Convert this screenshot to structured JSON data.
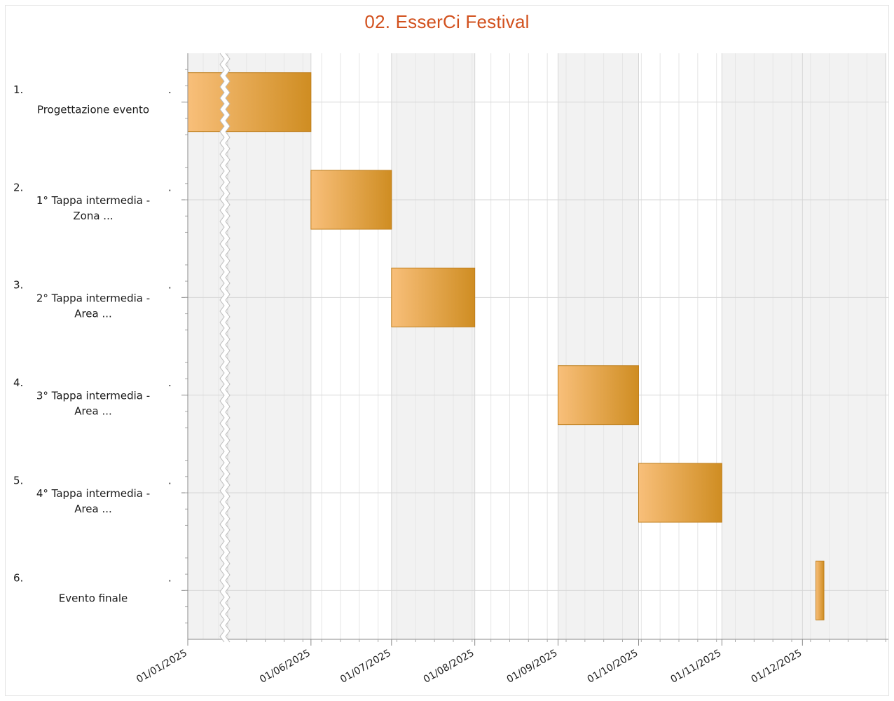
{
  "chart_data": {
    "type": "gantt",
    "title": "02. EsserCi Festival",
    "colors": {
      "bar_start": "#f8bf7a",
      "bar_end": "#cf8d22",
      "bar_border": "#c07f1c",
      "title": "#d2511e",
      "band": "#f2f2f2",
      "grid": "#d6d6d6"
    },
    "axis_break": {
      "from": "01/01/2025",
      "to": "01/05/2025"
    },
    "x_ticks": [
      "01/01/2025",
      "01/06/2025",
      "01/07/2025",
      "01/08/2025",
      "01/09/2025",
      "01/10/2025",
      "01/11/2025",
      "01/12/2025"
    ],
    "tasks": [
      {
        "number": "1.",
        "label": [
          "Progettazione evento"
        ],
        "start": "01/01/2025",
        "end": "31/05/2025"
      },
      {
        "number": "2.",
        "label": [
          "1° Tappa intermedia -",
          "Zona ..."
        ],
        "start": "01/06/2025",
        "end": "30/06/2025"
      },
      {
        "number": "3.",
        "label": [
          "2° Tappa intermedia -",
          "Area ..."
        ],
        "start": "01/07/2025",
        "end": "31/07/2025"
      },
      {
        "number": "4.",
        "label": [
          "3° Tappa intermedia -",
          "Area ..."
        ],
        "start": "01/09/2025",
        "end": "30/09/2025"
      },
      {
        "number": "5.",
        "label": [
          "4° Tappa intermedia -",
          "Area ..."
        ],
        "start": "01/10/2025",
        "end": "31/10/2025"
      },
      {
        "number": "6.",
        "label": [
          "Evento finale"
        ],
        "start": "06/12/2025",
        "end": "08/12/2025"
      }
    ]
  }
}
